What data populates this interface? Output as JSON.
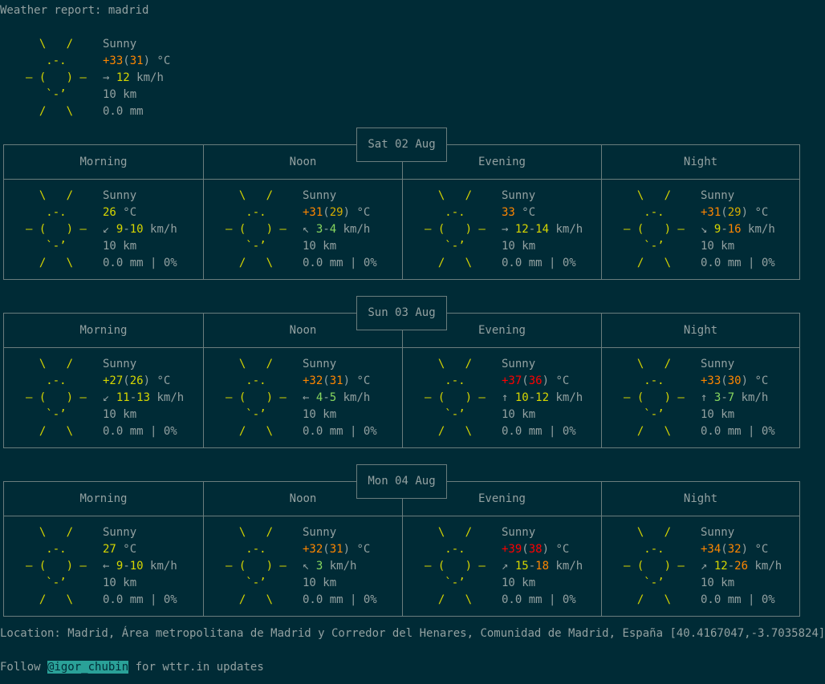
{
  "header": "Weather report: madrid",
  "current": {
    "condition": "Sunny",
    "temp": "+33",
    "feels": "31",
    "unit": " °C",
    "wind_arrow": "→",
    "wind": "12",
    "wind_unit": " km/h",
    "visibility": "10 km",
    "precip": "0.0 mm"
  },
  "sun_art": [
    "  \\   /  ",
    "   .-.   ",
    "― (   ) ―",
    "   `-’   ",
    "  /   \\  "
  ],
  "column_headers": [
    "Morning",
    "Noon",
    "Evening",
    "Night"
  ],
  "days": [
    {
      "label": "Sat 02 Aug",
      "periods": [
        {
          "condition": "Sunny",
          "t1": "26",
          "t2": "",
          "wind_arrow": "↙",
          "w1": "9",
          "w2": "10",
          "visibility": "10 km",
          "precip": "0.0 mm | 0%"
        },
        {
          "condition": "Sunny",
          "t1": "+31",
          "t2": "29",
          "wind_arrow": "↖",
          "w1": "3",
          "w2": "4",
          "visibility": "10 km",
          "precip": "0.0 mm | 0%"
        },
        {
          "condition": "Sunny",
          "t1": "33",
          "t2": "",
          "wind_arrow": "→",
          "w1": "12",
          "w2": "14",
          "visibility": "10 km",
          "precip": "0.0 mm | 0%"
        },
        {
          "condition": "Sunny",
          "t1": "+31",
          "t2": "29",
          "wind_arrow": "↘",
          "w1": "9",
          "w2": "16",
          "visibility": "10 km",
          "precip": "0.0 mm | 0%"
        }
      ]
    },
    {
      "label": "Sun 03 Aug",
      "periods": [
        {
          "condition": "Sunny",
          "t1": "+27",
          "t2": "26",
          "wind_arrow": "↙",
          "w1": "11",
          "w2": "13",
          "visibility": "10 km",
          "precip": "0.0 mm | 0%"
        },
        {
          "condition": "Sunny",
          "t1": "+32",
          "t2": "31",
          "wind_arrow": "←",
          "w1": "4",
          "w2": "5",
          "visibility": "10 km",
          "precip": "0.0 mm | 0%"
        },
        {
          "condition": "Sunny",
          "t1": "+37",
          "t2": "36",
          "wind_arrow": "↑",
          "w1": "10",
          "w2": "12",
          "visibility": "10 km",
          "precip": "0.0 mm | 0%"
        },
        {
          "condition": "Sunny",
          "t1": "+33",
          "t2": "30",
          "wind_arrow": "↑",
          "w1": "3",
          "w2": "7",
          "visibility": "10 km",
          "precip": "0.0 mm | 0%"
        }
      ]
    },
    {
      "label": "Mon 04 Aug",
      "periods": [
        {
          "condition": "Sunny",
          "t1": "27",
          "t2": "",
          "wind_arrow": "←",
          "w1": "9",
          "w2": "10",
          "visibility": "10 km",
          "precip": "0.0 mm | 0%"
        },
        {
          "condition": "Sunny",
          "t1": "+32",
          "t2": "31",
          "wind_arrow": "↖",
          "w1": "3",
          "w2": "",
          "visibility": "10 km",
          "precip": "0.0 mm | 0%"
        },
        {
          "condition": "Sunny",
          "t1": "+39",
          "t2": "38",
          "wind_arrow": "↗",
          "w1": "15",
          "w2": "18",
          "visibility": "10 km",
          "precip": "0.0 mm | 0%"
        },
        {
          "condition": "Sunny",
          "t1": "+34",
          "t2": "32",
          "wind_arrow": "↗",
          "w1": "12",
          "w2": "26",
          "visibility": "10 km",
          "precip": "0.0 mm | 0%"
        }
      ]
    }
  ],
  "footer": {
    "location": "Location: Madrid, Área metropolitana de Madrid y Corredor del Henares, Comunidad de Madrid, España [40.4167047,-3.7035824]",
    "follow_prefix": "Follow ",
    "handle": "@igor_chubin",
    "follow_suffix": " for wttr.in updates"
  }
}
